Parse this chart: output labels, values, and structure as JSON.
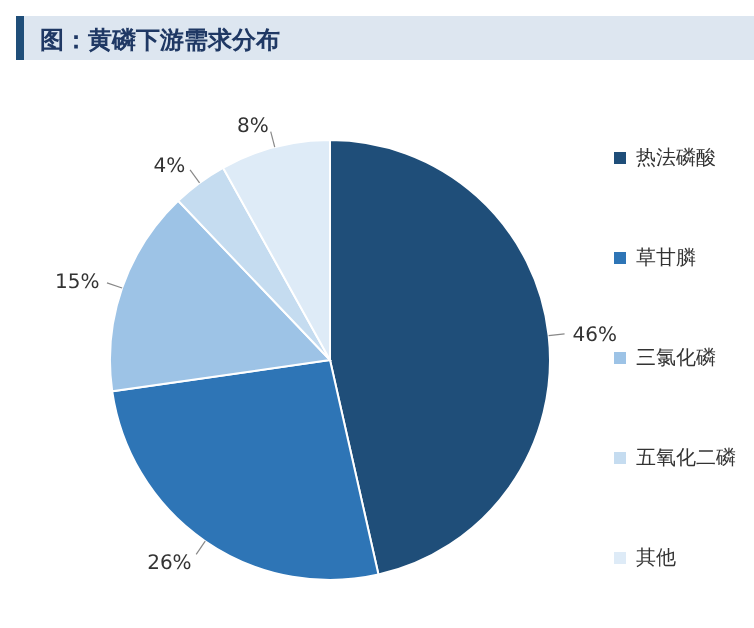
{
  "chart_data": {
    "type": "pie",
    "title": "图：黄磷下游需求分布",
    "categories": [
      "热法磷酸",
      "草甘膦",
      "三氯化磷",
      "五氧化二磷",
      "其他"
    ],
    "values": [
      46,
      26,
      15,
      4,
      8
    ],
    "colors": [
      "#1f4e79",
      "#2e75b6",
      "#9dc3e6",
      "#c5dcf0",
      "#deebf7"
    ],
    "value_labels": [
      "46%",
      "26%",
      "15%",
      "4%",
      "8%"
    ],
    "legend": "right"
  }
}
